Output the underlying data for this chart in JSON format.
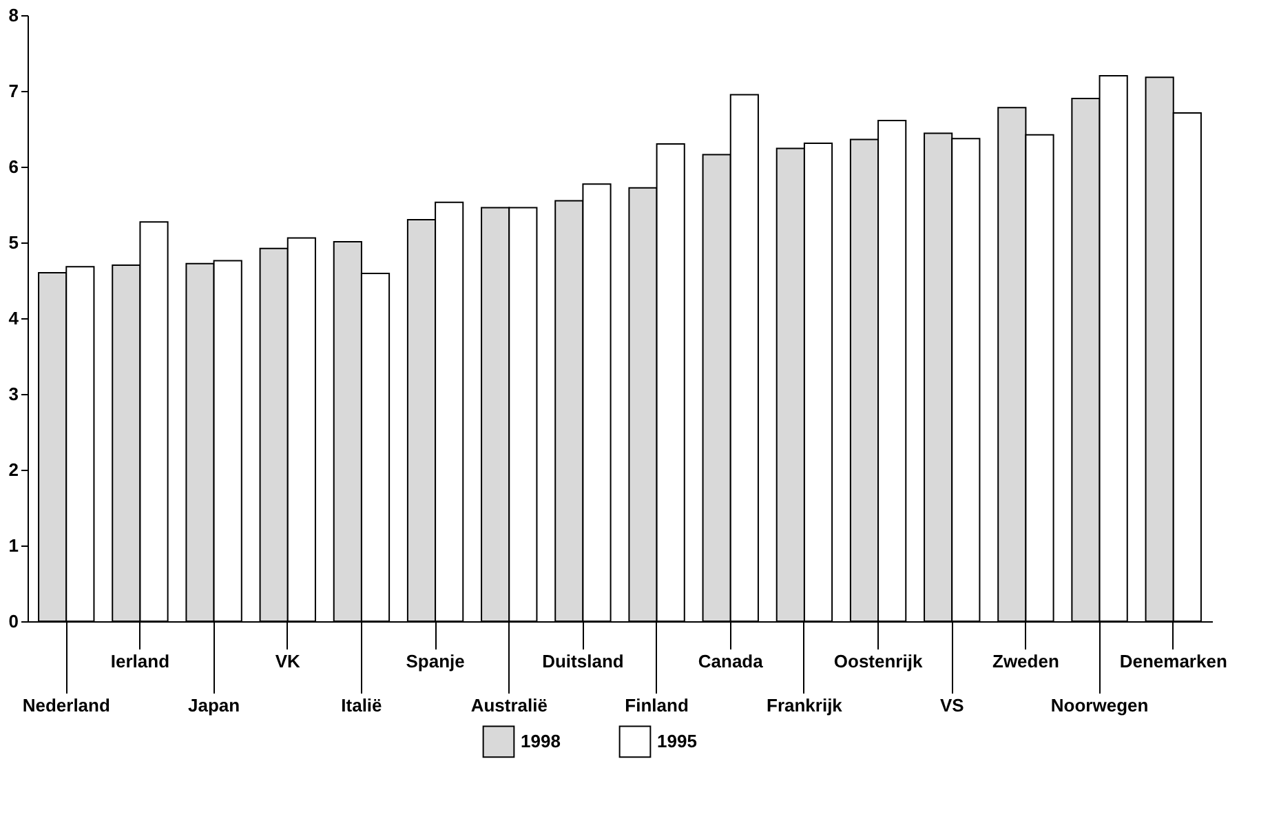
{
  "chart_data": {
    "type": "bar",
    "categories": [
      "Nederland",
      "Ierland",
      "Japan",
      "VK",
      "Italië",
      "Spanje",
      "Australië",
      "Duitsland",
      "Finland",
      "Canada",
      "Frankrijk",
      "Oostenrijk",
      "VS",
      "Zweden",
      "Noorwegen",
      "Denemarken"
    ],
    "series": [
      {
        "name": "1998",
        "color": "#d9d9d9",
        "values": [
          4.6,
          4.7,
          4.72,
          4.92,
          5.01,
          5.3,
          5.46,
          5.55,
          5.72,
          6.16,
          6.24,
          6.36,
          6.44,
          6.78,
          6.9,
          7.18
        ]
      },
      {
        "name": "1995",
        "color": "#ffffff",
        "values": [
          4.68,
          5.27,
          4.76,
          5.06,
          4.59,
          5.53,
          5.46,
          5.77,
          6.3,
          6.95,
          6.31,
          6.61,
          6.37,
          6.42,
          7.2,
          6.71
        ]
      }
    ],
    "ylim": [
      0,
      8
    ],
    "yticks": [
      0,
      1,
      2,
      3,
      4,
      5,
      6,
      7,
      8
    ],
    "legend": "bottom"
  }
}
